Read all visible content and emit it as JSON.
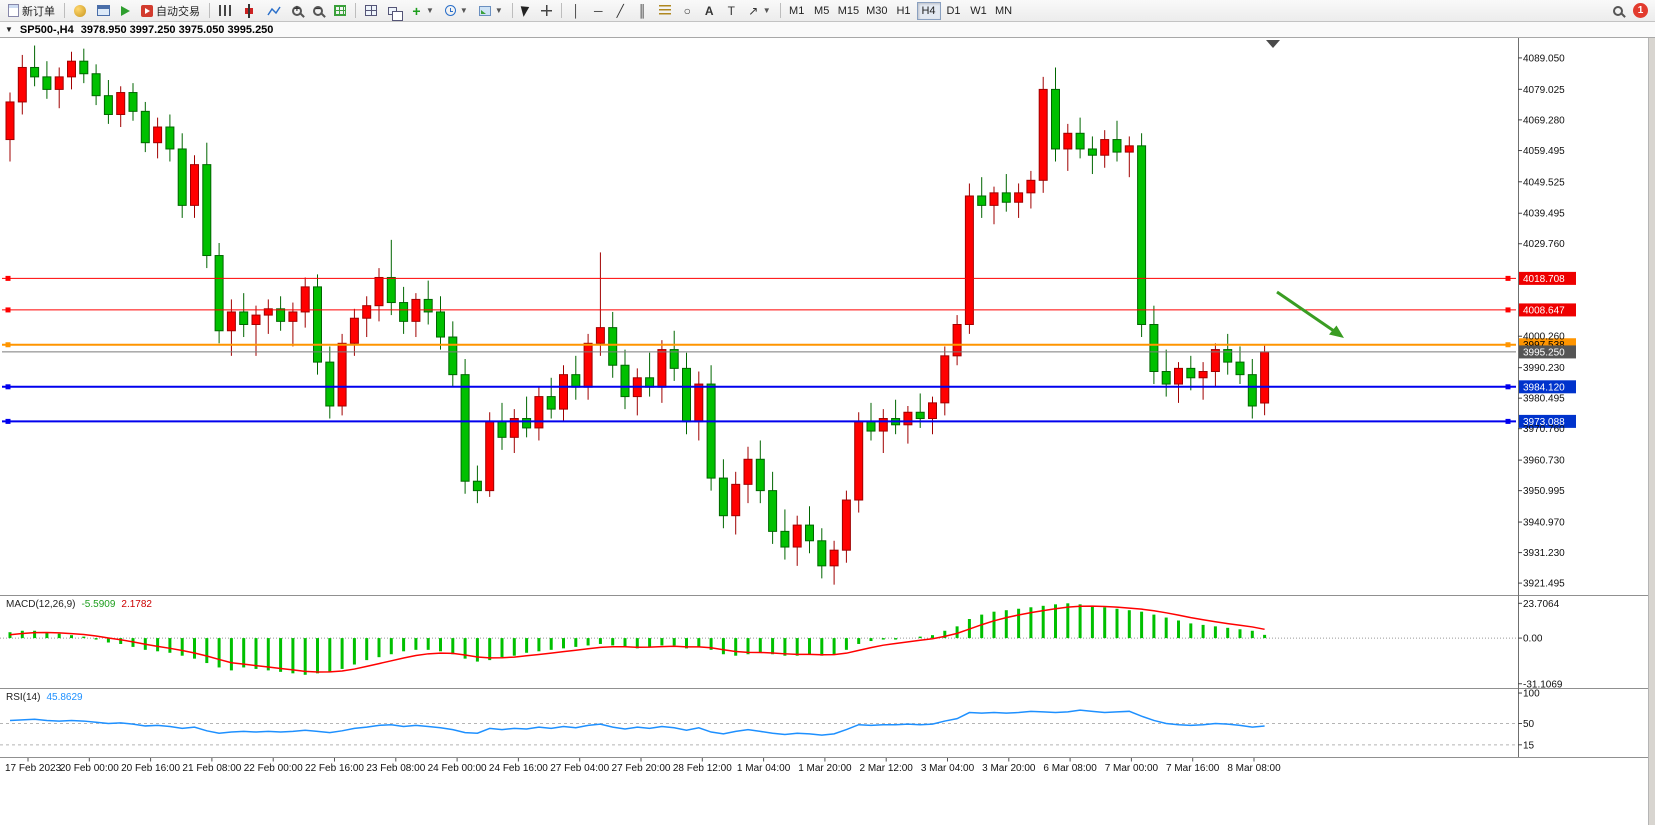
{
  "window": {
    "notification_count": "1"
  },
  "toolbar": {
    "new_order": "新订单",
    "auto_trading": "自动交易",
    "timeframes": [
      "M1",
      "M5",
      "M15",
      "M30",
      "H1",
      "H4",
      "D1",
      "W1",
      "MN"
    ],
    "active_timeframe": "H4"
  },
  "caption": {
    "symbol_period": "SP500-,H4",
    "ohlc": "3978.950 3997.250 3975.050 3995.250"
  },
  "chart_data": {
    "type": "candlestick",
    "title": "SP500-,H4",
    "last_ohlc": {
      "open": 3978.95,
      "high": 3997.25,
      "low": 3975.05,
      "close": 3995.25
    },
    "ylim": [
      3917.7,
      4095.4
    ],
    "up_color": "#ff0000",
    "down_color": "#00c000",
    "candles": [
      [
        4063,
        4078,
        4056,
        4075
      ],
      [
        4075,
        4090,
        4071,
        4086
      ],
      [
        4086,
        4093,
        4080,
        4083
      ],
      [
        4083,
        4088,
        4076,
        4079
      ],
      [
        4079,
        4086,
        4073,
        4083
      ],
      [
        4083,
        4091,
        4079,
        4088
      ],
      [
        4088,
        4092,
        4081,
        4084
      ],
      [
        4084,
        4087,
        4074,
        4077
      ],
      [
        4077,
        4082,
        4068,
        4071
      ],
      [
        4071,
        4080,
        4067,
        4078
      ],
      [
        4078,
        4081,
        4069,
        4072
      ],
      [
        4072,
        4075,
        4059,
        4062
      ],
      [
        4062,
        4070,
        4057,
        4067
      ],
      [
        4067,
        4071,
        4056,
        4060
      ],
      [
        4060,
        4065,
        4038,
        4042
      ],
      [
        4042,
        4058,
        4038,
        4055
      ],
      [
        4055,
        4062,
        4022,
        4026
      ],
      [
        4026,
        4030,
        3998,
        4002
      ],
      [
        4002,
        4012,
        3994,
        4008
      ],
      [
        4008,
        4014,
        4000,
        4004
      ],
      [
        4004,
        4010,
        3994,
        4007
      ],
      [
        4007,
        4012,
        4001,
        4009
      ],
      [
        4009,
        4013,
        4002,
        4005
      ],
      [
        4005,
        4011,
        3997,
        4008
      ],
      [
        4008,
        4019,
        4003,
        4016
      ],
      [
        4016,
        4020,
        3988,
        3992
      ],
      [
        3992,
        3997,
        3974,
        3978
      ],
      [
        3978,
        4001,
        3975,
        3998
      ],
      [
        3998,
        4009,
        3994,
        4006
      ],
      [
        4006,
        4013,
        4000,
        4010
      ],
      [
        4010,
        4022,
        4005,
        4019
      ],
      [
        4019,
        4031,
        4007,
        4011
      ],
      [
        4011,
        4016,
        4001,
        4005
      ],
      [
        4005,
        4014,
        4000,
        4012
      ],
      [
        4012,
        4018,
        4004,
        4008
      ],
      [
        4008,
        4013,
        3996,
        4000
      ],
      [
        4000,
        4005,
        3984,
        3988
      ],
      [
        3988,
        3993,
        3950,
        3954
      ],
      [
        3954,
        3959,
        3947,
        3951
      ],
      [
        3951,
        3976,
        3949,
        3973
      ],
      [
        3973,
        3979,
        3964,
        3968
      ],
      [
        3968,
        3977,
        3963,
        3974
      ],
      [
        3974,
        3981,
        3968,
        3971
      ],
      [
        3971,
        3984,
        3967,
        3981
      ],
      [
        3981,
        3987,
        3974,
        3977
      ],
      [
        3977,
        3991,
        3973,
        3988
      ],
      [
        3988,
        3994,
        3980,
        3984
      ],
      [
        3984,
        4001,
        3980,
        3998
      ],
      [
        3998,
        4027,
        3994,
        4003
      ],
      [
        4003,
        4008,
        3987,
        3991
      ],
      [
        3991,
        3996,
        3977,
        3981
      ],
      [
        3981,
        3990,
        3975,
        3987
      ],
      [
        3987,
        3995,
        3981,
        3984
      ],
      [
        3984,
        3999,
        3979,
        3996
      ],
      [
        3996,
        4002,
        3986,
        3990
      ],
      [
        3990,
        3995,
        3969,
        3973
      ],
      [
        3973,
        3989,
        3967,
        3985
      ],
      [
        3985,
        3991,
        3951,
        3955
      ],
      [
        3955,
        3961,
        3939,
        3943
      ],
      [
        3943,
        3957,
        3937,
        3953
      ],
      [
        3953,
        3965,
        3947,
        3961
      ],
      [
        3961,
        3967,
        3947,
        3951
      ],
      [
        3951,
        3957,
        3934,
        3938
      ],
      [
        3938,
        3945,
        3929,
        3933
      ],
      [
        3933,
        3943,
        3927,
        3940
      ],
      [
        3940,
        3946,
        3931,
        3935
      ],
      [
        3935,
        3939,
        3923,
        3927
      ],
      [
        3927,
        3935,
        3921,
        3932
      ],
      [
        3932,
        3951,
        3928,
        3948
      ],
      [
        3948,
        3976,
        3944,
        3973
      ],
      [
        3973,
        3979,
        3967,
        3970
      ],
      [
        3970,
        3977,
        3963,
        3974
      ],
      [
        3974,
        3980,
        3969,
        3972
      ],
      [
        3972,
        3978,
        3966,
        3976
      ],
      [
        3976,
        3982,
        3971,
        3974
      ],
      [
        3974,
        3981,
        3969,
        3979
      ],
      [
        3979,
        3997,
        3975,
        3994
      ],
      [
        3994,
        4007,
        3991,
        4004
      ],
      [
        4004,
        4049,
        4001,
        4045
      ],
      [
        4045,
        4051,
        4038,
        4042
      ],
      [
        4042,
        4048,
        4036,
        4046
      ],
      [
        4046,
        4052,
        4040,
        4043
      ],
      [
        4043,
        4049,
        4038,
        4046
      ],
      [
        4046,
        4053,
        4041,
        4050
      ],
      [
        4050,
        4083,
        4046,
        4079
      ],
      [
        4079,
        4086,
        4056,
        4060
      ],
      [
        4060,
        4068,
        4053,
        4065
      ],
      [
        4065,
        4070,
        4057,
        4060
      ],
      [
        4060,
        4064,
        4052,
        4058
      ],
      [
        4058,
        4066,
        4054,
        4063
      ],
      [
        4063,
        4069,
        4056,
        4059
      ],
      [
        4059,
        4064,
        4051,
        4061
      ],
      [
        4061,
        4065,
        4000,
        4004
      ],
      [
        4004,
        4010,
        3985,
        3989
      ],
      [
        3989,
        3996,
        3981,
        3985
      ],
      [
        3985,
        3992,
        3979,
        3990
      ],
      [
        3990,
        3994,
        3983,
        3987
      ],
      [
        3987,
        3992,
        3980,
        3989
      ],
      [
        3989,
        3998,
        3984,
        3996
      ],
      [
        3996,
        4001,
        3988,
        3992
      ],
      [
        3992,
        3997,
        3985,
        3988
      ],
      [
        3988,
        3993,
        3974,
        3978
      ],
      [
        3978.95,
        3997.25,
        3975.05,
        3995.25
      ]
    ],
    "x_labels": [
      "17 Feb 2023",
      "20 Feb 00:00",
      "20 Feb 16:00",
      "21 Feb 08:00",
      "22 Feb 00:00",
      "22 Feb 16:00",
      "23 Feb 08:00",
      "24 Feb 00:00",
      "24 Feb 16:00",
      "27 Feb 04:00",
      "27 Feb 20:00",
      "28 Feb 12:00",
      "1 Mar 04:00",
      "1 Mar 20:00",
      "2 Mar 12:00",
      "3 Mar 04:00",
      "3 Mar 20:00",
      "6 Mar 08:00",
      "7 Mar 00:00",
      "7 Mar 16:00",
      "8 Mar 08:00"
    ],
    "price_ticks": [
      "4089.050",
      "4079.025",
      "4069.280",
      "4059.495",
      "4049.525",
      "4039.495",
      "4029.760",
      "4000.260",
      "3990.230",
      "3980.495",
      "3970.760",
      "3960.730",
      "3950.995",
      "3940.970",
      "3931.230",
      "3921.495"
    ],
    "levels": [
      {
        "price": 4018.708,
        "label": "4018.708",
        "line_color": "#ff0000",
        "bg": "#ee0000",
        "fg": "#ffffff",
        "width": 1,
        "handles": true
      },
      {
        "price": 4008.647,
        "label": "4008.647",
        "line_color": "#ff0000",
        "bg": "#ee0000",
        "fg": "#ffffff",
        "width": 1,
        "handles": true
      },
      {
        "price": 3997.538,
        "label": "3997.538",
        "line_color": "#ff9500",
        "bg": "#ff9500",
        "fg": "#000000",
        "width": 2,
        "handles": true
      },
      {
        "price": 3995.25,
        "label": "3995.250",
        "line_color": "#7a7a7a",
        "bg": "#555555",
        "fg": "#ffffff",
        "width": 1,
        "handles": false
      },
      {
        "price": 3984.12,
        "label": "3984.120",
        "line_color": "#0000ee",
        "bg": "#0033cc",
        "fg": "#ffffff",
        "width": 2,
        "handles": true
      },
      {
        "price": 3973.088,
        "label": "3973.088",
        "line_color": "#0000ee",
        "bg": "#0033cc",
        "fg": "#ffffff",
        "width": 2,
        "handles": true
      }
    ],
    "annotations": [
      {
        "type": "arrow",
        "color": "#3a9d23",
        "direction": "down-right"
      }
    ],
    "indicators": [
      {
        "name": "MACD",
        "label": "MACD(12,26,9)",
        "value_main": "-5.5909",
        "value_signal": "2.1782",
        "axis_ticks": [
          "23.7064",
          "0.00",
          "-31.1069"
        ],
        "ylim": [
          -34,
          28
        ],
        "histogram_color": "#00c000",
        "signal_color": "#ff0000",
        "histogram": [
          4,
          5,
          5,
          4,
          3,
          2,
          1,
          -1,
          -3,
          -4,
          -6,
          -8,
          -9,
          -10,
          -12,
          -14,
          -17,
          -20,
          -22,
          -20,
          -21,
          -22,
          -23,
          -24,
          -25,
          -24,
          -23,
          -21,
          -18,
          -15,
          -13,
          -11,
          -9,
          -8,
          -8,
          -9,
          -11,
          -14,
          -16,
          -15,
          -13,
          -12,
          -10,
          -9,
          -8,
          -7,
          -6,
          -5,
          -4,
          -5,
          -6,
          -7,
          -6,
          -5,
          -5,
          -7,
          -6,
          -8,
          -11,
          -12,
          -11,
          -10,
          -11,
          -12,
          -12,
          -11,
          -12,
          -11,
          -8,
          -4,
          -2,
          -1,
          -1,
          0,
          1,
          2,
          5,
          8,
          13,
          16,
          18,
          19,
          20,
          21,
          22,
          23,
          23.7,
          23,
          22,
          21,
          20,
          19,
          18,
          16,
          14,
          12,
          10,
          9,
          8,
          7,
          6,
          5,
          2.2
        ]
      },
      {
        "name": "RSI",
        "label": "RSI(14)",
        "value": "45.8629",
        "axis_ticks": [
          "100",
          "50",
          "15"
        ],
        "levels": [
          50,
          15
        ],
        "ylim": [
          -5,
          105
        ],
        "line_color": "#1e90ff",
        "values": [
          55,
          56,
          57,
          55,
          54,
          55,
          54,
          52,
          50,
          51,
          49,
          46,
          47,
          45,
          42,
          44,
          38,
          34,
          36,
          37,
          36,
          37,
          36,
          37,
          39,
          37,
          35,
          38,
          42,
          44,
          47,
          48,
          45,
          47,
          45,
          43,
          40,
          35,
          34,
          42,
          40,
          42,
          41,
          44,
          42,
          45,
          43,
          47,
          49,
          44,
          41,
          44,
          42,
          45,
          43,
          39,
          43,
          36,
          33,
          37,
          40,
          37,
          34,
          32,
          34,
          33,
          31,
          33,
          40,
          48,
          47,
          48,
          48,
          49,
          48,
          49,
          54,
          58,
          68,
          67,
          68,
          67,
          68,
          70,
          69,
          68,
          69,
          72,
          70,
          68,
          69,
          70,
          62,
          55,
          50,
          48,
          47,
          48,
          50,
          49,
          47,
          44,
          45.86
        ]
      }
    ]
  }
}
